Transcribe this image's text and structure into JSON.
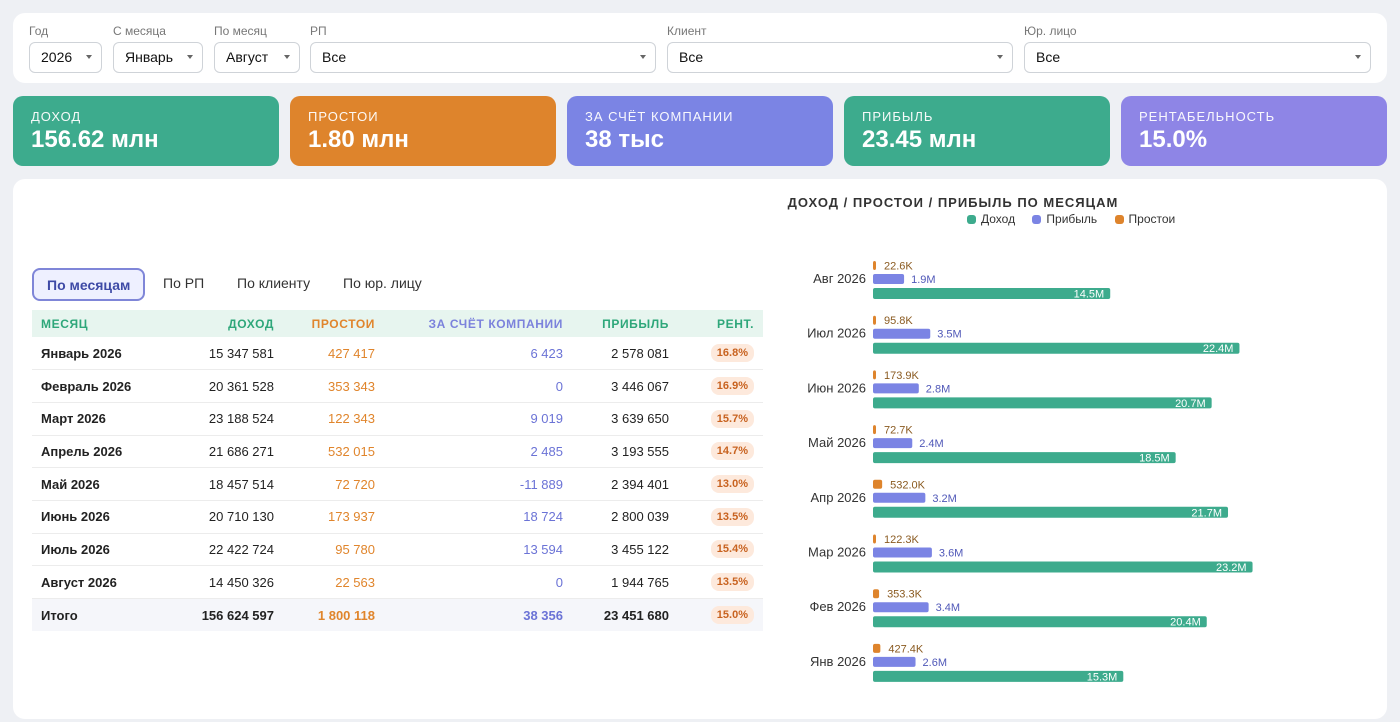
{
  "filters": {
    "year": {
      "label": "Год",
      "value": "2026"
    },
    "from_month": {
      "label": "С месяца",
      "value": "Январь"
    },
    "to_month": {
      "label": "По месяц",
      "value": "Август"
    },
    "rp": {
      "label": "РП",
      "value": "Все"
    },
    "client": {
      "label": "Клиент",
      "value": "Все"
    },
    "legal": {
      "label": "Юр. лицо",
      "value": "Все"
    }
  },
  "kpis": [
    {
      "label": "ДОХОД",
      "value": "156.62 млн",
      "color": "#3dab8d"
    },
    {
      "label": "ПРОСТОИ",
      "value": "1.80 млн",
      "color": "#de842c"
    },
    {
      "label": "ЗА СЧЁТ КОМПАНИИ",
      "value": "38 тыс",
      "color": "#7b84e4"
    },
    {
      "label": "ПРИБЫЛЬ",
      "value": "23.45 млн",
      "color": "#3dab8d"
    },
    {
      "label": "РЕНТАБЕЛЬНОСТЬ",
      "value": "15.0%",
      "color": "#8e85e6"
    }
  ],
  "tabs": [
    "По месяцам",
    "По РП",
    "По клиенту",
    "По юр. лицу"
  ],
  "table": {
    "headers": [
      "МЕСЯЦ",
      "ДОХОД",
      "ПРОСТОИ",
      "ЗА СЧЁТ КОМПАНИИ",
      "ПРИБЫЛЬ",
      "РЕНТ."
    ],
    "rows": [
      [
        "Январь 2026",
        "15 347 581",
        "427 417",
        "6 423",
        "2 578 081",
        "16.8%"
      ],
      [
        "Февраль 2026",
        "20 361 528",
        "353 343",
        "0",
        "3 446 067",
        "16.9%"
      ],
      [
        "Март 2026",
        "23 188 524",
        "122 343",
        "9 019",
        "3 639 650",
        "15.7%"
      ],
      [
        "Апрель 2026",
        "21 686 271",
        "532 015",
        "2 485",
        "3 193 555",
        "14.7%"
      ],
      [
        "Май 2026",
        "18 457 514",
        "72 720",
        "-11 889",
        "2 394 401",
        "13.0%"
      ],
      [
        "Июнь 2026",
        "20 710 130",
        "173 937",
        "18 724",
        "2 800 039",
        "13.5%"
      ],
      [
        "Июль 2026",
        "22 422 724",
        "95 780",
        "13 594",
        "3 455 122",
        "15.4%"
      ],
      [
        "Август 2026",
        "14 450 326",
        "22 563",
        "0",
        "1 944 765",
        "13.5%"
      ]
    ],
    "total": [
      "Итого",
      "156 624 597",
      "1 800 118",
      "38 356",
      "23 451 680",
      "15.0%"
    ]
  },
  "chart_data": {
    "type": "bar",
    "orientation": "horizontal",
    "title": "ДОХОД / ПРОСТОИ / ПРИБЫЛЬ ПО МЕСЯЦАМ",
    "legend_position": "top",
    "categories": [
      "Авг 2026",
      "Июл 2026",
      "Июн 2026",
      "Май 2026",
      "Апр 2026",
      "Мар 2026",
      "Фев 2026",
      "Янв 2026"
    ],
    "series": [
      {
        "name": "Простои",
        "color": "#de842c",
        "values": [
          22.6,
          95.8,
          173.9,
          72.7,
          532.0,
          122.3,
          353.3,
          427.4
        ],
        "labels": [
          "22.6K",
          "95.8K",
          "173.9K",
          "72.7K",
          "532.0K",
          "122.3K",
          "353.3K",
          "427.4K"
        ]
      },
      {
        "name": "Прибыль",
        "color": "#7b84e4",
        "values": [
          1.9,
          3.5,
          2.8,
          2.4,
          3.2,
          3.6,
          3.4,
          2.6
        ],
        "labels": [
          "1.9M",
          "3.5M",
          "2.8M",
          "2.4M",
          "3.2M",
          "3.6M",
          "3.4M",
          "2.6M"
        ]
      },
      {
        "name": "Доход",
        "color": "#3dab8d",
        "values": [
          14.5,
          22.4,
          20.7,
          18.5,
          21.7,
          23.2,
          20.4,
          15.3
        ],
        "labels": [
          "14.5M",
          "22.4M",
          "20.7M",
          "18.5M",
          "21.7M",
          "23.2M",
          "20.4M",
          "15.3M"
        ]
      }
    ],
    "legend": [
      {
        "name": "Доход",
        "color": "#3dab8d"
      },
      {
        "name": "Прибыль",
        "color": "#7b84e4"
      },
      {
        "name": "Простои",
        "color": "#de842c"
      }
    ]
  }
}
